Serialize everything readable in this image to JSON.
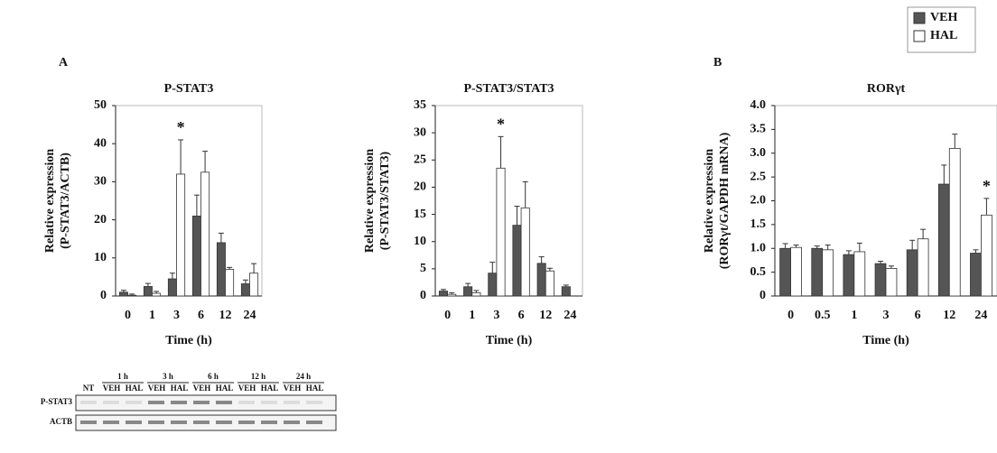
{
  "chart_data": [
    {
      "type": "bar",
      "title": "P-STAT3",
      "ylabel": [
        "Relative expression",
        "(P-STAT3/ACTB)"
      ],
      "xlabel": "Time (h)",
      "categories": [
        "0",
        "1",
        "3",
        "6",
        "12",
        "24"
      ],
      "series": [
        {
          "color": "#555555",
          "values": [
            1,
            2.5,
            4.5,
            21,
            14,
            3.2
          ],
          "errors": [
            0.5,
            0.8,
            1.5,
            5.5,
            2.5,
            1
          ]
        },
        {
          "color": "#ffffff",
          "values": [
            0.2,
            0.7,
            32,
            32.5,
            7,
            6
          ],
          "errors": [
            0.3,
            0.5,
            9,
            5.5,
            0.5,
            2.5
          ]
        }
      ],
      "ylim": [
        0,
        50
      ],
      "yticks": [
        0,
        10,
        20,
        30,
        40,
        50
      ],
      "annotations": [
        {
          "text": "*",
          "x": "3"
        }
      ]
    },
    {
      "type": "bar",
      "title": "P-STAT3/STAT3",
      "ylabel": [
        "Relative expression",
        "(P-STAT3/STAT3)"
      ],
      "xlabel": "Time (h)",
      "categories": [
        "0",
        "1",
        "3",
        "6",
        "12",
        "24"
      ],
      "series": [
        {
          "color": "#555555",
          "values": [
            0.9,
            1.7,
            4.2,
            13,
            6,
            1.7
          ],
          "errors": [
            0.3,
            0.6,
            2,
            3.5,
            1.2,
            0.3
          ]
        },
        {
          "color": "#ffffff",
          "values": [
            0.3,
            0.6,
            23.5,
            16.2,
            4.6,
            null
          ],
          "errors": [
            0.3,
            0.4,
            5.8,
            4.8,
            0.5,
            null
          ]
        }
      ],
      "ylim": [
        0,
        35
      ],
      "yticks": [
        0,
        5,
        10,
        15,
        20,
        25,
        30,
        35
      ],
      "annotations": [
        {
          "text": "*",
          "x": "3"
        }
      ]
    },
    {
      "type": "bar",
      "title": "RORγt",
      "ylabel": [
        "Relative expression",
        "(RORγt/GAPDH mRNA)"
      ],
      "xlabel": "Time (h)",
      "categories": [
        "0",
        "0.5",
        "1",
        "3",
        "6",
        "12",
        "24"
      ],
      "series": [
        {
          "name": "VEH",
          "color": "#555555",
          "values": [
            1.0,
            1.0,
            0.87,
            0.68,
            0.97,
            2.35,
            0.9
          ],
          "errors": [
            0.1,
            0.05,
            0.08,
            0.05,
            0.2,
            0.4,
            0.07
          ]
        },
        {
          "name": "HAL",
          "color": "#ffffff",
          "values": [
            1.02,
            0.97,
            0.93,
            0.58,
            1.2,
            3.1,
            1.7
          ],
          "errors": [
            0.05,
            0.1,
            0.18,
            0.05,
            0.2,
            0.3,
            0.35
          ]
        }
      ],
      "ylim": [
        0,
        4
      ],
      "yticks": [
        0,
        0.5,
        {
          "value": 1,
          "label": "1.0"
        },
        1.5,
        {
          "value": 2,
          "label": "2.0"
        },
        2.5,
        {
          "value": 3,
          "label": "3.0"
        },
        3.5,
        {
          "value": 4,
          "label": "4.0"
        }
      ],
      "annotations": [
        {
          "text": "*",
          "x": "24"
        }
      ]
    }
  ],
  "panel_labels": [
    "A",
    "B"
  ],
  "blot": {
    "groups": [
      "1 h",
      "3 h",
      "6 h",
      "12 h",
      "24 h"
    ],
    "first_lane": "NT",
    "lane_pair": [
      "VEH",
      "HAL"
    ],
    "rows": [
      "P-STAT3",
      "ACTB"
    ]
  }
}
